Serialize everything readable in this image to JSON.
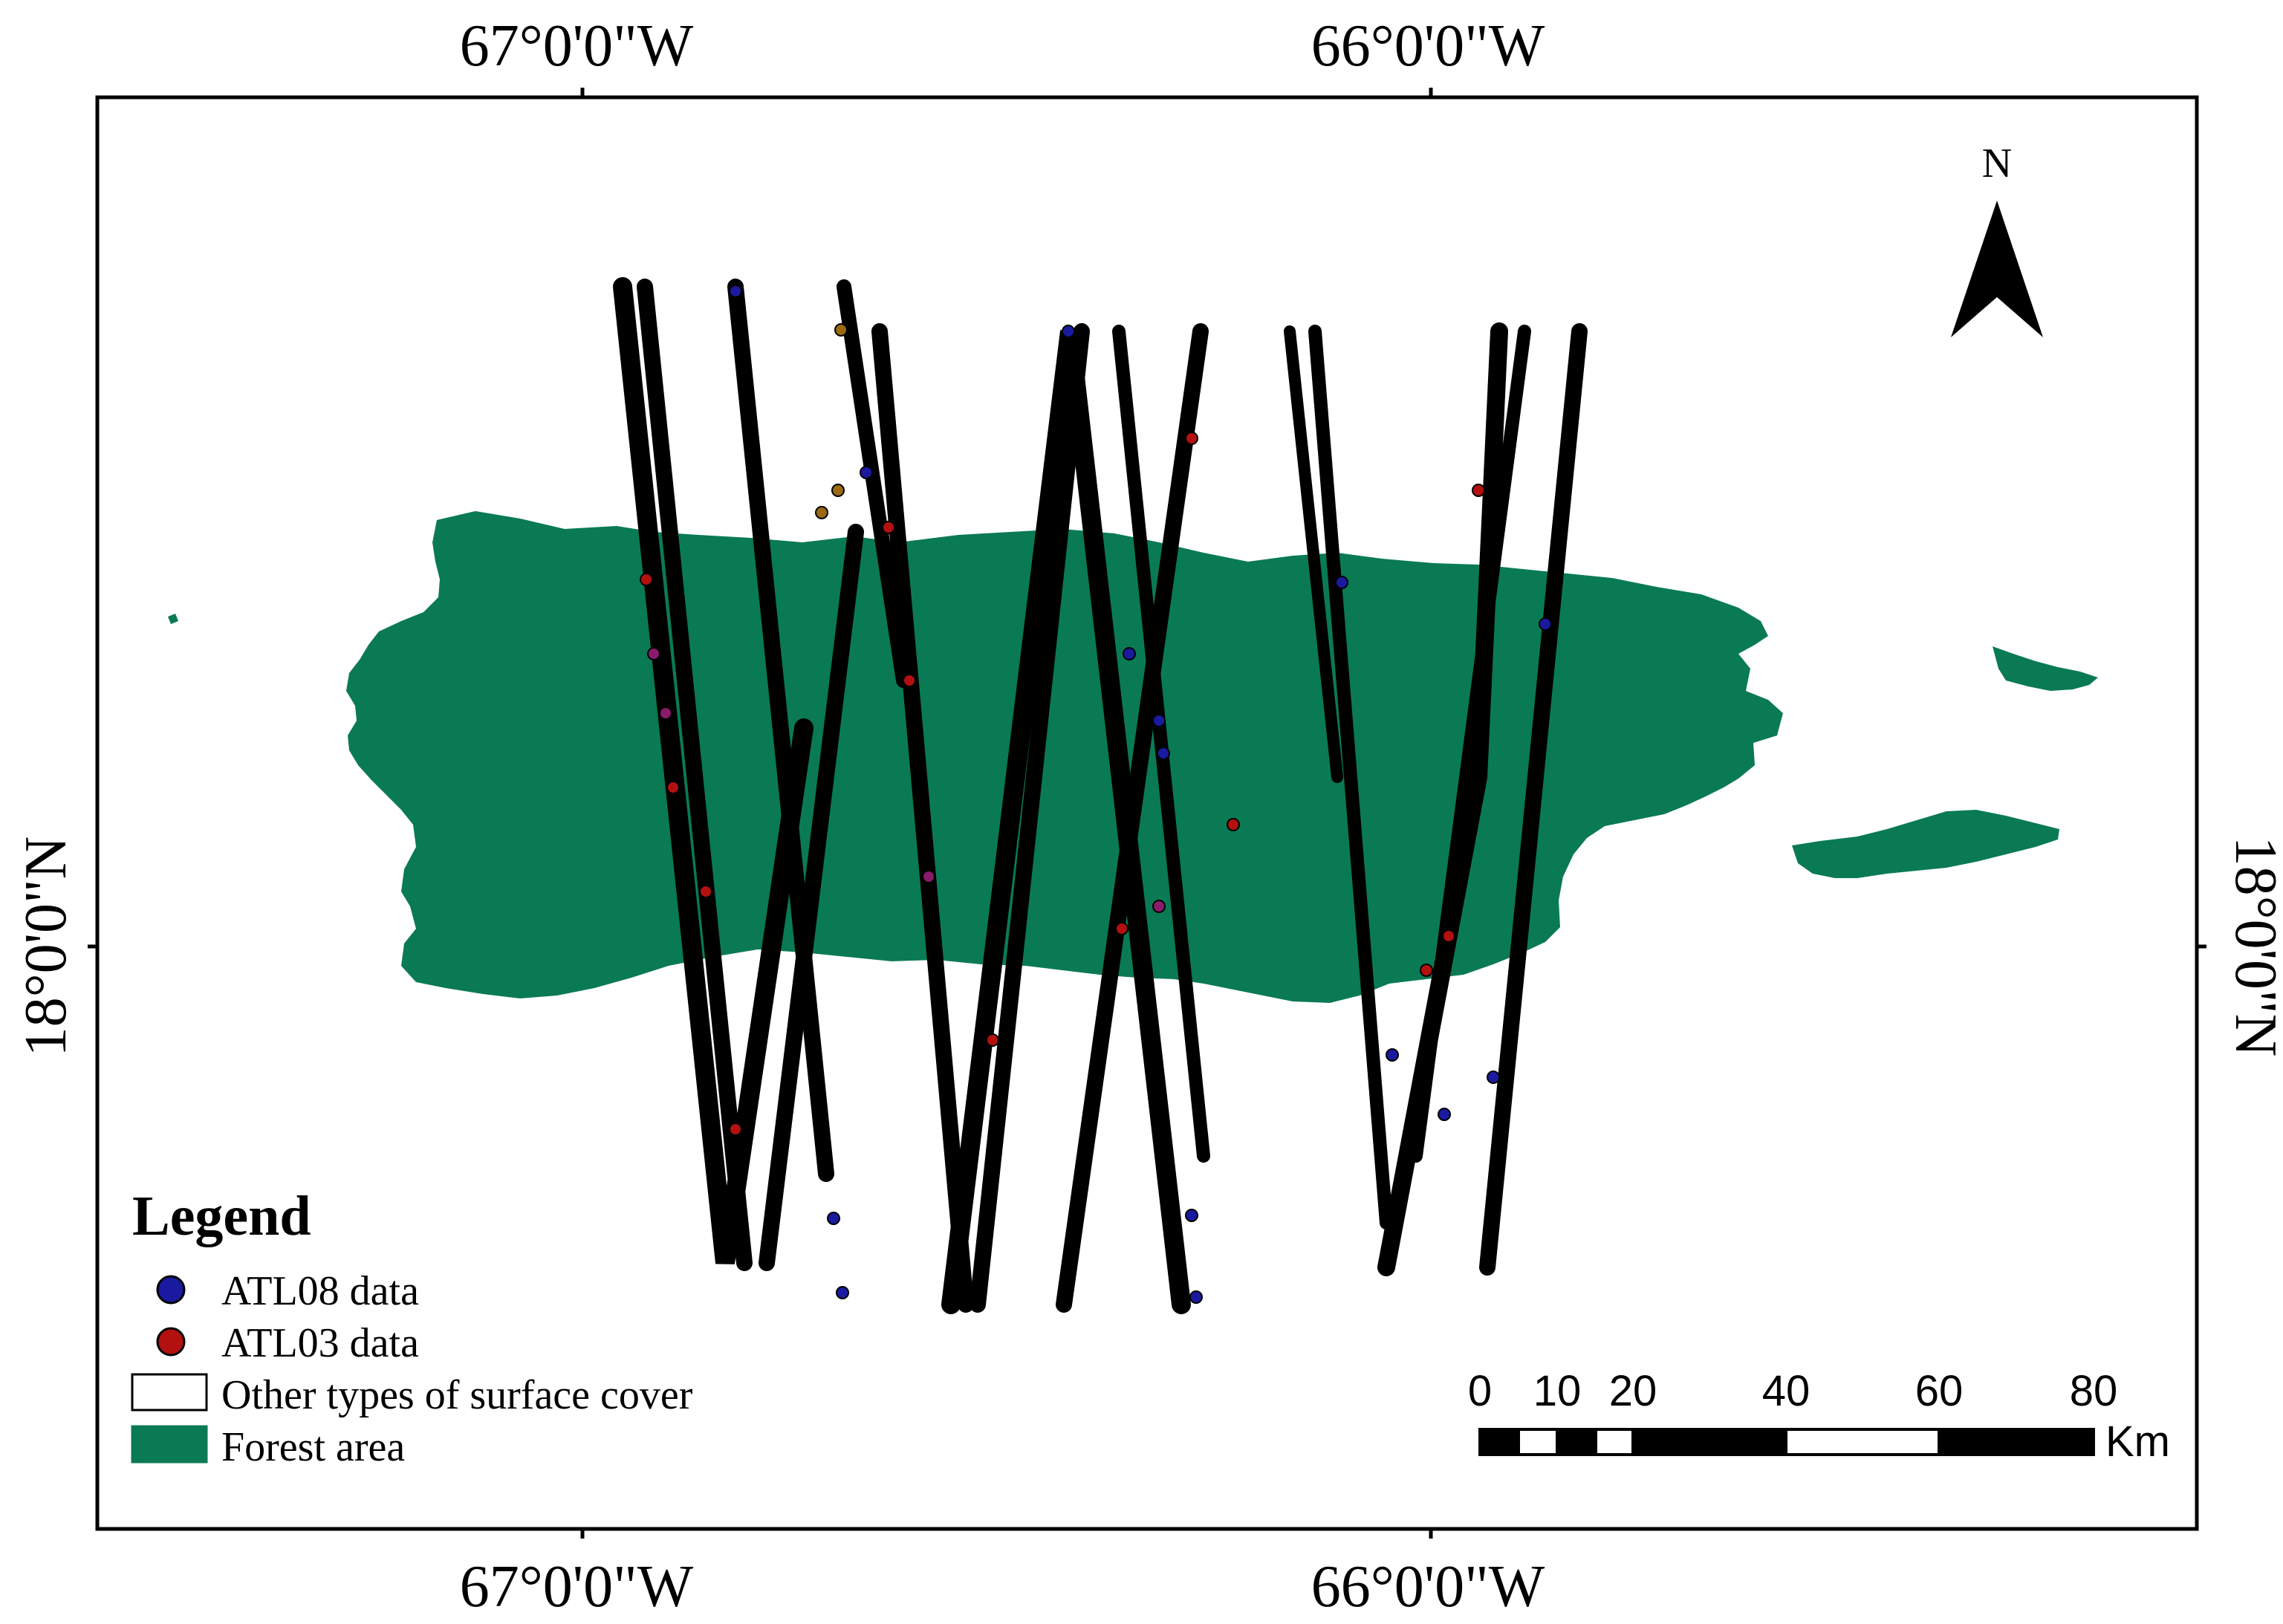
{
  "coordinates": {
    "lon_west": "67°0'0\"W",
    "lon_east": "66°0'0\"W",
    "lat": "18°0'0\"N"
  },
  "north_arrow": {
    "label": "N"
  },
  "legend": {
    "title": "Legend",
    "items": [
      {
        "label": "ATL08 data",
        "symbol": "dot",
        "color": "#1a1aa0"
      },
      {
        "label": "ATL03 data",
        "symbol": "dot",
        "color": "#b31010"
      },
      {
        "label": "Other types of surface cover",
        "symbol": "box",
        "color": "#ffffff"
      },
      {
        "label": "Forest area",
        "symbol": "box",
        "color": "#0a7a55"
      }
    ]
  },
  "scale_bar": {
    "ticks": [
      "0",
      "10",
      "20",
      "40",
      "60",
      "80"
    ],
    "unit": "Km"
  },
  "colors": {
    "forest": "#0a7a55",
    "track": "#000000",
    "atl08": "#1a1aa0",
    "atl03": "#b31010",
    "mixed": "#8a1a6a",
    "frame": "#000000"
  }
}
